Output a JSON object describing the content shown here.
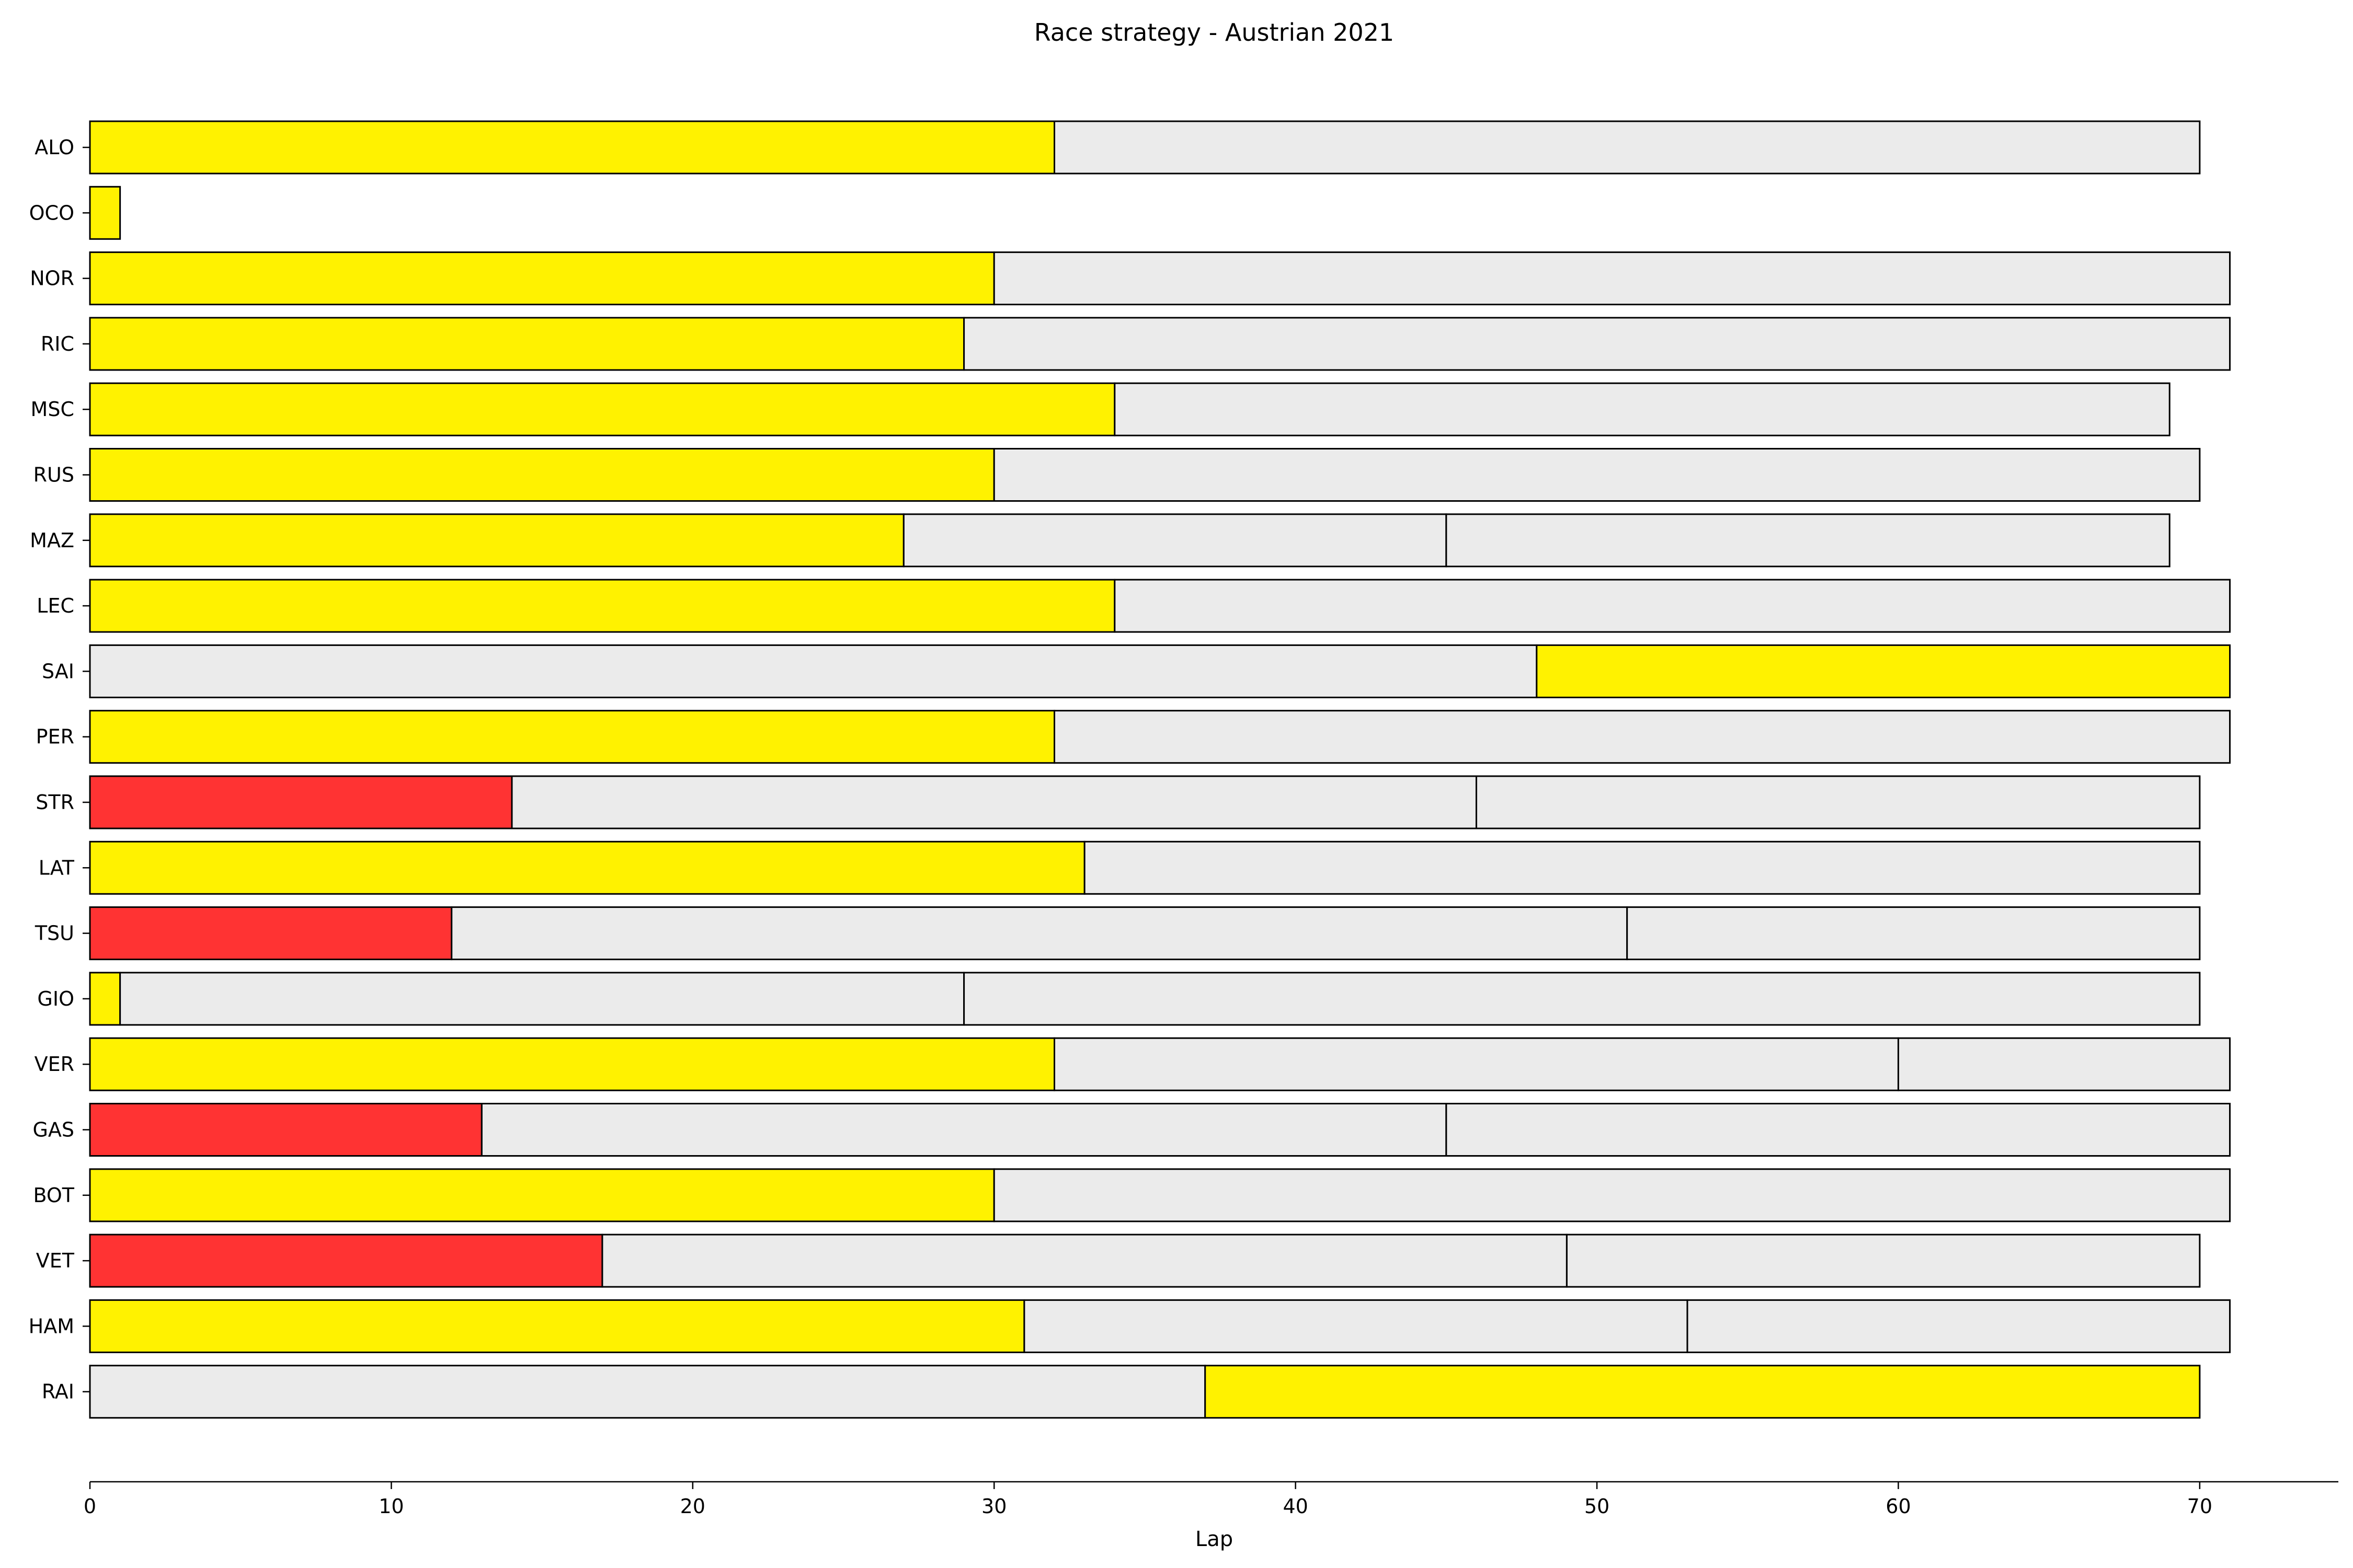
{
  "chart_data": {
    "type": "bar",
    "orientation": "horizontal-stacked",
    "title": "Race strategy - Austrian 2021",
    "xlabel": "Lap",
    "ylabel": "",
    "xlim": [
      0,
      74.6
    ],
    "xticks": [
      "0",
      "10",
      "20",
      "30",
      "40",
      "50",
      "60",
      "70"
    ],
    "grid": false,
    "legend": "none",
    "compound_colors": {
      "SOFT": "#ff3333",
      "MEDIUM": "#fff200",
      "HARD": "#ebebeb"
    },
    "drivers": [
      {
        "driver": "ALO",
        "stints": [
          {
            "compound": "MEDIUM",
            "laps": 32
          },
          {
            "compound": "HARD",
            "laps": 38
          }
        ]
      },
      {
        "driver": "OCO",
        "stints": [
          {
            "compound": "MEDIUM",
            "laps": 1
          }
        ]
      },
      {
        "driver": "NOR",
        "stints": [
          {
            "compound": "MEDIUM",
            "laps": 30
          },
          {
            "compound": "HARD",
            "laps": 41
          }
        ]
      },
      {
        "driver": "RIC",
        "stints": [
          {
            "compound": "MEDIUM",
            "laps": 29
          },
          {
            "compound": "HARD",
            "laps": 42
          }
        ]
      },
      {
        "driver": "MSC",
        "stints": [
          {
            "compound": "MEDIUM",
            "laps": 34
          },
          {
            "compound": "HARD",
            "laps": 35
          }
        ]
      },
      {
        "driver": "RUS",
        "stints": [
          {
            "compound": "MEDIUM",
            "laps": 30
          },
          {
            "compound": "HARD",
            "laps": 40
          }
        ]
      },
      {
        "driver": "MAZ",
        "stints": [
          {
            "compound": "MEDIUM",
            "laps": 27
          },
          {
            "compound": "HARD",
            "laps": 18
          },
          {
            "compound": "HARD",
            "laps": 24
          }
        ]
      },
      {
        "driver": "LEC",
        "stints": [
          {
            "compound": "MEDIUM",
            "laps": 34
          },
          {
            "compound": "HARD",
            "laps": 37
          }
        ]
      },
      {
        "driver": "SAI",
        "stints": [
          {
            "compound": "HARD",
            "laps": 48
          },
          {
            "compound": "MEDIUM",
            "laps": 23
          }
        ]
      },
      {
        "driver": "PER",
        "stints": [
          {
            "compound": "MEDIUM",
            "laps": 32
          },
          {
            "compound": "HARD",
            "laps": 39
          }
        ]
      },
      {
        "driver": "STR",
        "stints": [
          {
            "compound": "SOFT",
            "laps": 14
          },
          {
            "compound": "HARD",
            "laps": 32
          },
          {
            "compound": "HARD",
            "laps": 24
          }
        ]
      },
      {
        "driver": "LAT",
        "stints": [
          {
            "compound": "MEDIUM",
            "laps": 33
          },
          {
            "compound": "HARD",
            "laps": 37
          }
        ]
      },
      {
        "driver": "TSU",
        "stints": [
          {
            "compound": "SOFT",
            "laps": 12
          },
          {
            "compound": "HARD",
            "laps": 39
          },
          {
            "compound": "HARD",
            "laps": 19
          }
        ]
      },
      {
        "driver": "GIO",
        "stints": [
          {
            "compound": "MEDIUM",
            "laps": 1
          },
          {
            "compound": "HARD",
            "laps": 28
          },
          {
            "compound": "HARD",
            "laps": 41
          }
        ]
      },
      {
        "driver": "VER",
        "stints": [
          {
            "compound": "MEDIUM",
            "laps": 32
          },
          {
            "compound": "HARD",
            "laps": 28
          },
          {
            "compound": "HARD",
            "laps": 11
          }
        ]
      },
      {
        "driver": "GAS",
        "stints": [
          {
            "compound": "SOFT",
            "laps": 13
          },
          {
            "compound": "HARD",
            "laps": 32
          },
          {
            "compound": "HARD",
            "laps": 26
          }
        ]
      },
      {
        "driver": "BOT",
        "stints": [
          {
            "compound": "MEDIUM",
            "laps": 30
          },
          {
            "compound": "HARD",
            "laps": 41
          }
        ]
      },
      {
        "driver": "VET",
        "stints": [
          {
            "compound": "SOFT",
            "laps": 17
          },
          {
            "compound": "HARD",
            "laps": 32
          },
          {
            "compound": "HARD",
            "laps": 21
          }
        ]
      },
      {
        "driver": "HAM",
        "stints": [
          {
            "compound": "MEDIUM",
            "laps": 31
          },
          {
            "compound": "HARD",
            "laps": 22
          },
          {
            "compound": "HARD",
            "laps": 18
          }
        ]
      },
      {
        "driver": "RAI",
        "stints": [
          {
            "compound": "HARD",
            "laps": 37
          },
          {
            "compound": "MEDIUM",
            "laps": 33
          }
        ]
      }
    ]
  }
}
